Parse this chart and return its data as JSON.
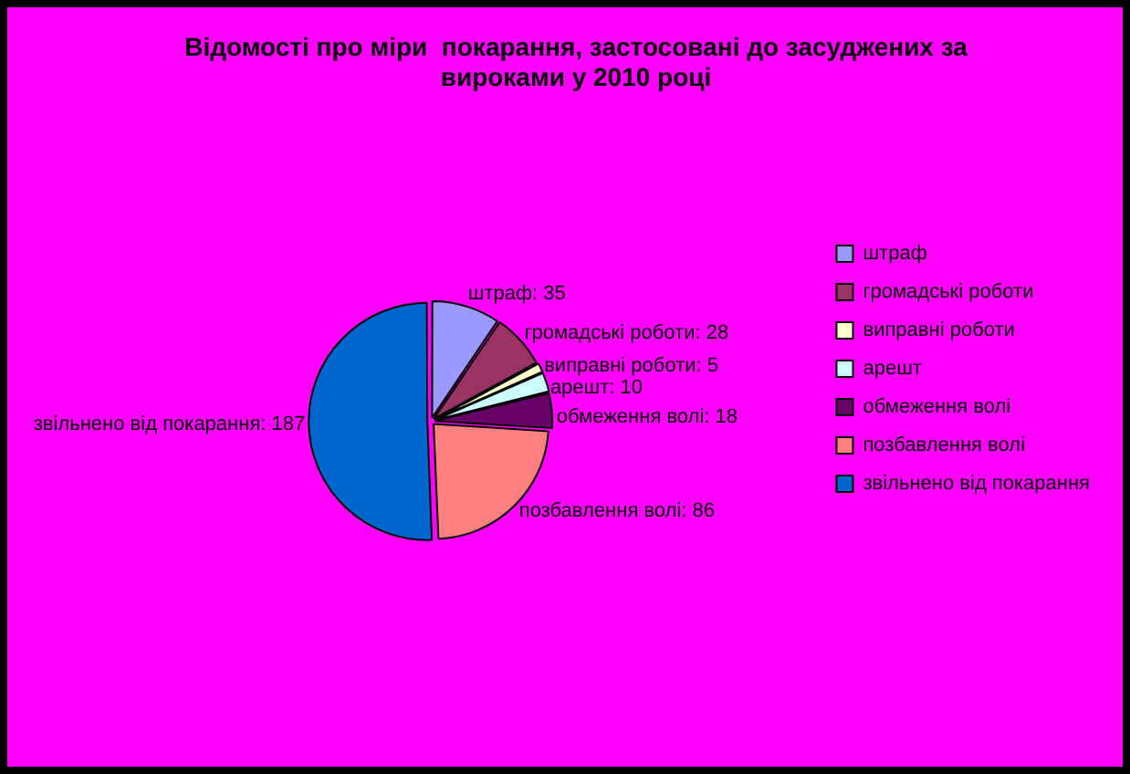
{
  "chart_data": {
    "type": "pie",
    "title": "Відомості про міри  покарання, застосовані до засуджених за вироками у 2010 році",
    "categories": [
      "штраф",
      "громадські роботи",
      "виправні роботи",
      "арешт",
      "обмеження волі",
      "позбавлення волі",
      "звільнено від покарання"
    ],
    "values": [
      35,
      28,
      5,
      10,
      18,
      86,
      187
    ],
    "value_labels": [
      "штраф: 35",
      "громадські роботи: 28",
      "виправні роботи: 5",
      "арешт: 10",
      "обмеження волі: 18",
      "позбавлення волі: 86",
      "звільнено від покарання: 187"
    ],
    "colors": [
      "#9999ff",
      "#993366",
      "#ffffcc",
      "#ccffff",
      "#660066",
      "#ff8080",
      "#0066cc"
    ],
    "legend": "right"
  }
}
